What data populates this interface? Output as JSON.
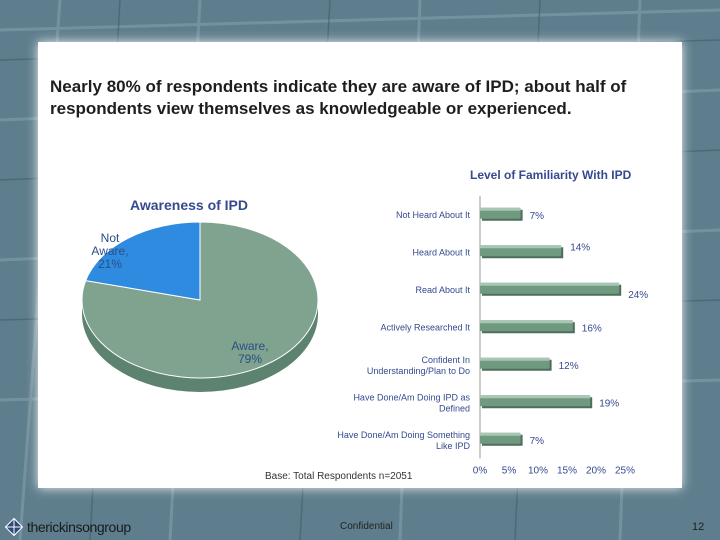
{
  "slide": {
    "headline": "Nearly 80% of respondents indicate they are aware of IPD; about half of respondents view themselves as knowledgeable or experienced.",
    "base_note": "Base: Total Respondents n=2051",
    "footer_center": "Confidential",
    "page_number": "12",
    "logo_text": "therickinsongroup"
  },
  "colors": {
    "pie_aware": "#7fa38e",
    "pie_not_aware": "#2e8be0",
    "bar": "#6f9a80",
    "title": "#35498f"
  },
  "chart_data": [
    {
      "type": "pie",
      "title": "Awareness of IPD",
      "slices": [
        {
          "label": "Aware,",
          "value": 79,
          "value_label": "79%"
        },
        {
          "label": "Not Aware,",
          "value": 21,
          "value_label": "21%"
        }
      ]
    },
    {
      "type": "bar",
      "orientation": "horizontal",
      "title": "Level of Familiarity With IPD",
      "categories": [
        "Not Heard About It",
        "Heard About It",
        "Read About It",
        "Actively Researched It",
        "Confident In Understanding/Plan to Do",
        "Have Done/Am Doing IPD as Defined",
        "Have Done/Am Doing Something Like IPD"
      ],
      "values": [
        7,
        14,
        24,
        16,
        12,
        19,
        7
      ],
      "value_labels": [
        "7%",
        "14%",
        "24%",
        "16%",
        "12%",
        "19%",
        "7%"
      ],
      "xlim": [
        0,
        25
      ],
      "xticks": [
        "0%",
        "5%",
        "10%",
        "15%",
        "20%",
        "25%"
      ]
    }
  ]
}
